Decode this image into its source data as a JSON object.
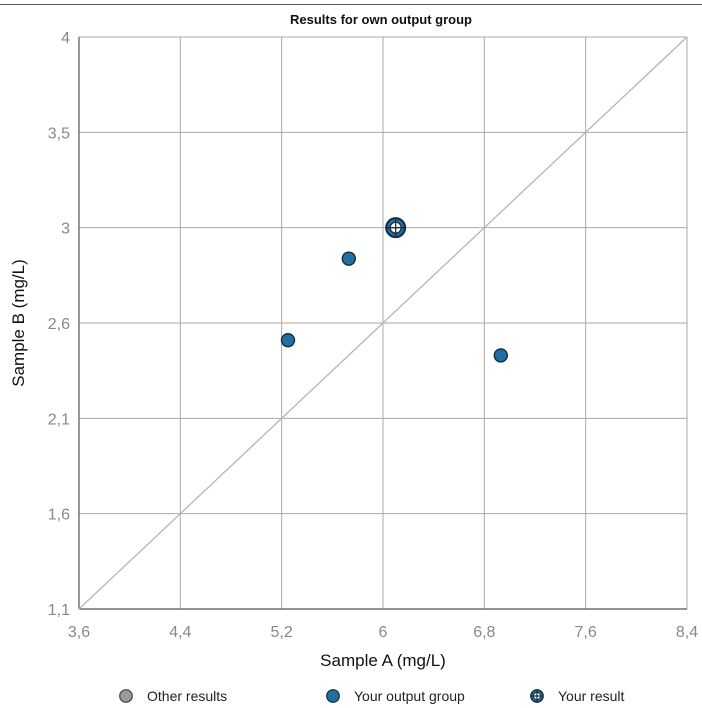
{
  "chart_data": {
    "type": "scatter",
    "title": "Results for own output group",
    "xlabel": "Sample A (mg/L)",
    "ylabel": "Sample B (mg/L)",
    "xlim": [
      3.6,
      8.4
    ],
    "ylim": [
      1.1,
      4
    ],
    "x_ticks": [
      {
        "value": 3.6,
        "label": "3,6"
      },
      {
        "value": 4.4,
        "label": "4,4"
      },
      {
        "value": 5.2,
        "label": "5,2"
      },
      {
        "value": 6.0,
        "label": "6"
      },
      {
        "value": 6.8,
        "label": "6,8"
      },
      {
        "value": 7.6,
        "label": "7,6"
      },
      {
        "value": 8.4,
        "label": "8,4"
      }
    ],
    "y_ticks": [
      {
        "value": 1.1,
        "label": "1,1"
      },
      {
        "value": 1.6,
        "label": "1,6"
      },
      {
        "value": 2.1,
        "label": "2,1"
      },
      {
        "value": 2.6,
        "label": "2,6"
      },
      {
        "value": 3.5,
        "label": "3,5"
      },
      {
        "value": 4.0,
        "label": "4"
      }
    ],
    "y_tick_mid": {
      "value": 3.0,
      "label": "3"
    },
    "grid": true,
    "reference_line": "diagonal",
    "legend_position": "bottom",
    "series": [
      {
        "name": "Other results",
        "color": "#9a9a9a",
        "marker": "circle",
        "points": []
      },
      {
        "name": "Your output group",
        "color": "#1f6fa3",
        "marker": "circle",
        "points": [
          {
            "x": 5.25,
            "y": 2.51
          },
          {
            "x": 5.73,
            "y": 2.87
          },
          {
            "x": 6.93,
            "y": 2.43
          }
        ]
      },
      {
        "name": "Your result",
        "color": "#1f6fa3",
        "marker": "crosshair-circle",
        "points": [
          {
            "x": 6.1,
            "y": 3.0
          }
        ]
      }
    ]
  },
  "colors": {
    "grid": "#a9a9a9",
    "axis_line": "#555555",
    "diagonal": "#b5b5b5",
    "marker_outline": "#1b2a3a",
    "legend_other": "#9a9a9a",
    "legend_group": "#1f6fa3"
  }
}
